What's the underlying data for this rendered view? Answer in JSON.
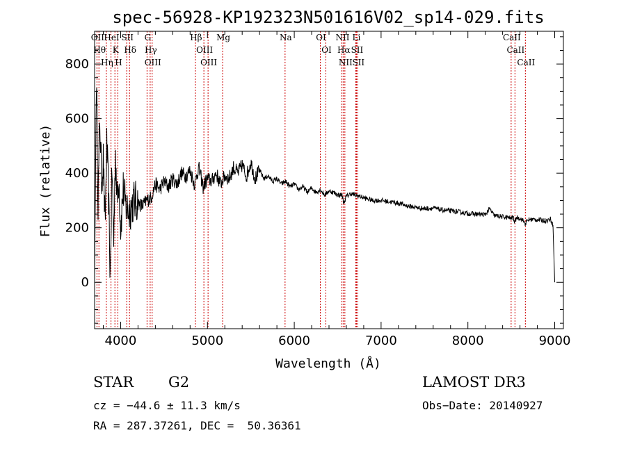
{
  "chart_data": {
    "type": "line",
    "title": "spec-56928-KP192323N501616V02_sp14-029.fits",
    "xlabel": "Wavelength (Å)",
    "ylabel": "Flux (relative)",
    "xlim": [
      3700,
      9100
    ],
    "ylim": [
      -170,
      920
    ],
    "x_ticks": [
      4000,
      5000,
      6000,
      7000,
      8000,
      9000
    ],
    "y_ticks": [
      0,
      200,
      400,
      600,
      800
    ],
    "line_color": "#000000",
    "marker_color": "#cc0000",
    "series": [
      {
        "name": "spectrum",
        "x": [
          3700,
          3720,
          3740,
          3760,
          3780,
          3800,
          3820,
          3840,
          3860,
          3880,
          3900,
          3920,
          3940,
          3960,
          3980,
          4000,
          4030,
          4060,
          4100,
          4150,
          4200,
          4250,
          4300,
          4350,
          4400,
          4450,
          4500,
          4550,
          4600,
          4650,
          4700,
          4750,
          4800,
          4850,
          4900,
          4950,
          5000,
          5050,
          5100,
          5150,
          5200,
          5250,
          5300,
          5350,
          5400,
          5450,
          5500,
          5550,
          5600,
          5650,
          5700,
          5750,
          5800,
          5850,
          5900,
          5950,
          6000,
          6050,
          6100,
          6150,
          6200,
          6250,
          6300,
          6350,
          6400,
          6450,
          6500,
          6550,
          6570,
          6600,
          6650,
          6700,
          6750,
          6800,
          6900,
          7000,
          7100,
          7200,
          7300,
          7400,
          7500,
          7600,
          7700,
          7800,
          7900,
          8000,
          8100,
          8200,
          8250,
          8300,
          8400,
          8450,
          8500,
          8520,
          8540,
          8560,
          8600,
          8640,
          8660,
          8700,
          8800,
          8900,
          8950,
          8980,
          9000
        ],
        "y": [
          0,
          750,
          300,
          600,
          380,
          450,
          200,
          500,
          320,
          20,
          420,
          150,
          480,
          300,
          390,
          200,
          340,
          280,
          260,
          300,
          290,
          280,
          300,
          310,
          360,
          340,
          370,
          350,
          380,
          360,
          400,
          390,
          410,
          360,
          420,
          350,
          380,
          370,
          400,
          360,
          390,
          380,
          420,
          400,
          430,
          390,
          440,
          380,
          410,
          380,
          390,
          370,
          380,
          360,
          370,
          350,
          360,
          340,
          350,
          330,
          345,
          330,
          340,
          320,
          335,
          330,
          320,
          320,
          290,
          315,
          325,
          320,
          315,
          310,
          300,
          300,
          295,
          290,
          280,
          275,
          270,
          272,
          265,
          262,
          258,
          252,
          250,
          248,
          270,
          245,
          240,
          238,
          235,
          240,
          220,
          238,
          235,
          225,
          215,
          230,
          230,
          225,
          232,
          210,
          0
        ]
      }
    ],
    "line_markers": [
      {
        "name": "OII",
        "x": 3727
      },
      {
        "name": "Hθ",
        "x": 3750
      },
      {
        "name": "Hη",
        "x": 3835
      },
      {
        "name": "HeI",
        "x": 3889
      },
      {
        "name": "K",
        "x": 3934
      },
      {
        "name": "H",
        "x": 3968
      },
      {
        "name": "SII",
        "x": 4070
      },
      {
        "name": "Hδ",
        "x": 4102
      },
      {
        "name": "G",
        "x": 4304
      },
      {
        "name": "Hγ",
        "x": 4340
      },
      {
        "name": "OIII",
        "x": 4363
      },
      {
        "name": "Hβ",
        "x": 4861
      },
      {
        "name": "OIII",
        "x": 4959
      },
      {
        "name": "OIII",
        "x": 5007
      },
      {
        "name": "Mg",
        "x": 5175
      },
      {
        "name": "Na",
        "x": 5894
      },
      {
        "name": "OI",
        "x": 6300
      },
      {
        "name": "OI",
        "x": 6364
      },
      {
        "name": "NII",
        "x": 6548
      },
      {
        "name": "Hα",
        "x": 6563
      },
      {
        "name": "NII",
        "x": 6583
      },
      {
        "name": "Li",
        "x": 6708
      },
      {
        "name": "SII",
        "x": 6716
      },
      {
        "name": "SII",
        "x": 6731
      },
      {
        "name": "CaII",
        "x": 8498
      },
      {
        "name": "CaII",
        "x": 8542
      },
      {
        "name": "CaII",
        "x": 8662
      }
    ]
  },
  "info": {
    "class": "STAR",
    "subclass": "G2",
    "survey": "LAMOST DR3",
    "cz": "cz = −44.6 ± 11.3 km/s",
    "obs_date": "Obs−Date: 20140927",
    "radec": "RA = 287.37261, DEC =  50.36361"
  }
}
